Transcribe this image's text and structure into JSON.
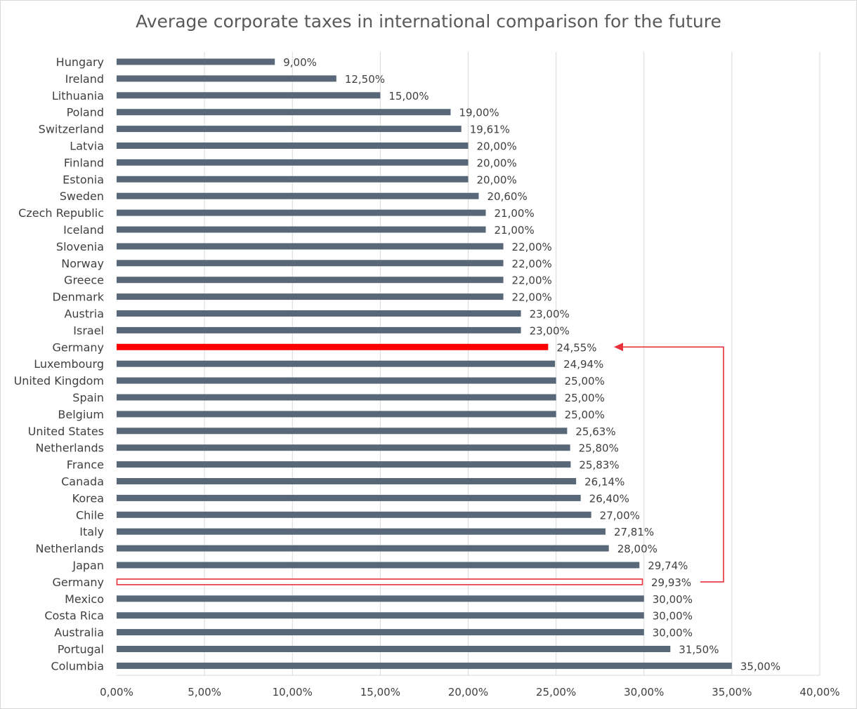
{
  "chart_data": {
    "type": "bar",
    "orientation": "horizontal",
    "title": "Average corporate taxes in international comparison for the future",
    "categories": [
      "Hungary",
      "Ireland",
      "Lithuania",
      "Poland",
      "Switzerland",
      "Latvia",
      "Finland",
      "Estonia",
      "Sweden",
      "Czech Republic",
      "Iceland",
      "Slovenia",
      "Norway",
      "Greece",
      "Denmark",
      "Austria",
      "Israel",
      "Germany",
      "Luxembourg",
      "United Kingdom",
      "Spain",
      "Belgium",
      "United States",
      "Netherlands",
      "France",
      "Canada",
      "Korea",
      "Chile",
      "Italy",
      "Netherlands",
      "Japan",
      "Germany",
      "Mexico",
      "Costa Rica",
      "Australia",
      "Portugal",
      "Columbia"
    ],
    "values": [
      9.0,
      12.5,
      15.0,
      19.0,
      19.61,
      20.0,
      20.0,
      20.0,
      20.6,
      21.0,
      21.0,
      22.0,
      22.0,
      22.0,
      22.0,
      23.0,
      23.0,
      24.55,
      24.94,
      25.0,
      25.0,
      25.0,
      25.63,
      25.8,
      25.83,
      26.14,
      26.4,
      27.0,
      27.81,
      28.0,
      29.74,
      29.93,
      30.0,
      30.0,
      30.0,
      31.5,
      35.0
    ],
    "data_labels": [
      "9,00%",
      "12,50%",
      "15,00%",
      "19,00%",
      "19,61%",
      "20,00%",
      "20,00%",
      "20,00%",
      "20,60%",
      "21,00%",
      "21,00%",
      "22,00%",
      "22,00%",
      "22,00%",
      "22,00%",
      "23,00%",
      "23,00%",
      "24,55%",
      "24,94%",
      "25,00%",
      "25,00%",
      "25,00%",
      "25,63%",
      "25,80%",
      "25,83%",
      "26,14%",
      "26,40%",
      "27,00%",
      "27,81%",
      "28,00%",
      "29,74%",
      "29,93%",
      "30,00%",
      "30,00%",
      "30,00%",
      "31,50%",
      "35,00%"
    ],
    "bar_styles": [
      "default",
      "default",
      "default",
      "default",
      "default",
      "default",
      "default",
      "default",
      "default",
      "default",
      "default",
      "default",
      "default",
      "default",
      "default",
      "default",
      "default",
      "highlight",
      "default",
      "default",
      "default",
      "default",
      "default",
      "default",
      "default",
      "default",
      "default",
      "default",
      "default",
      "default",
      "default",
      "outline",
      "default",
      "default",
      "default",
      "default",
      "default"
    ],
    "x_ticks": [
      0,
      5,
      10,
      15,
      20,
      25,
      30,
      35,
      40
    ],
    "x_tick_labels": [
      "0,00%",
      "5,00%",
      "10,00%",
      "15,00%",
      "20,00%",
      "25,00%",
      "30,00%",
      "35,00%",
      "40,00%"
    ],
    "xlim": [
      0,
      40
    ],
    "grid": "vertical",
    "annotation": {
      "type": "arrow",
      "from_index": 31,
      "to_index": 17
    },
    "colors": {
      "bar": "#596878",
      "highlight": "#ff0000",
      "outline": "#e8303a",
      "arrow": "#e8303a",
      "grid": "#d9d9d9",
      "text": "#404040"
    }
  }
}
